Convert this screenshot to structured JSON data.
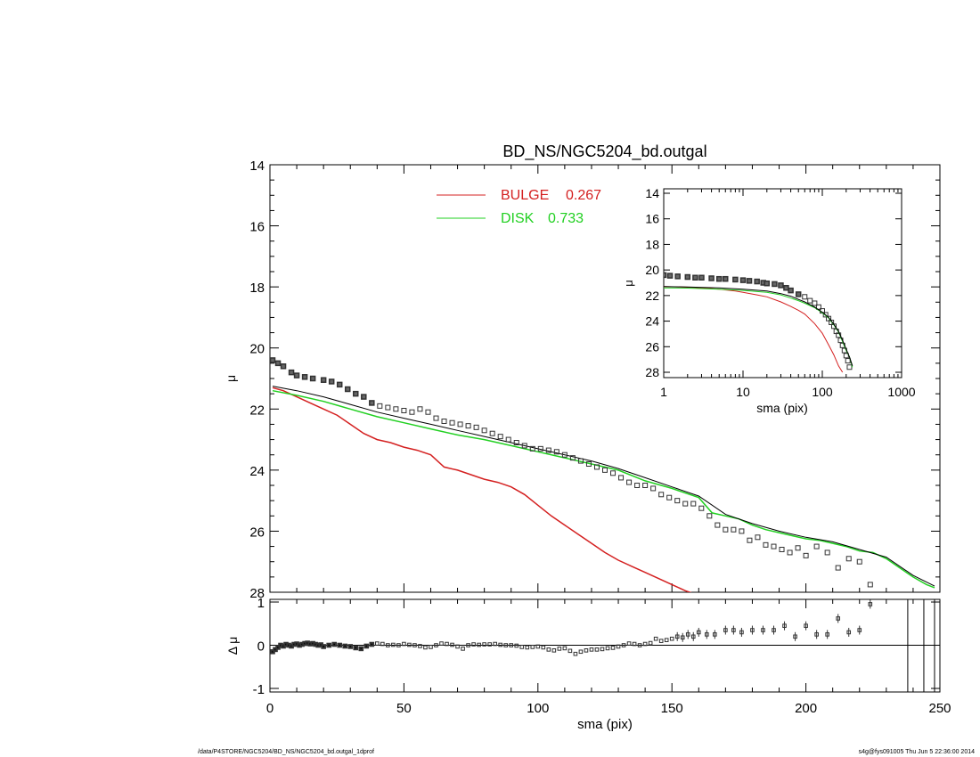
{
  "colors": {
    "bulge": "#d42020",
    "disk": "#22d022",
    "data": "#333333",
    "axis": "#000000"
  },
  "footer": {
    "left": "/data/P4STORE/NGC5204/BD_NS/NGC5204_bd.outgal_1dprof",
    "right": "s4g@fys091005  Thu Jun  5 22:36:00 2014"
  },
  "chart_data": [
    {
      "id": "main",
      "type": "line",
      "title": "BD_NS/NGC5204_bd.outgal",
      "xlabel": "",
      "ylabel": "μ",
      "xlim": [
        0,
        250
      ],
      "ylim": [
        28,
        14
      ],
      "y_ticks": [
        "14",
        "16",
        "18",
        "20",
        "22",
        "24",
        "26",
        "28"
      ],
      "legend": [
        {
          "label": "BULGE",
          "value": "0.267",
          "color": "#d42020"
        },
        {
          "label": "DISK",
          "value": "0.733",
          "color": "#22d022"
        }
      ],
      "series": [
        {
          "name": "BULGE",
          "kind": "line",
          "color": "#d42020",
          "x": [
            1,
            5,
            10,
            15,
            20,
            25,
            30,
            35,
            40,
            45,
            50,
            55,
            60,
            65,
            70,
            75,
            80,
            85,
            90,
            95,
            100,
            105,
            110,
            115,
            120,
            125,
            130,
            135,
            140,
            145,
            150,
            155,
            160
          ],
          "y": [
            21.3,
            21.4,
            21.6,
            21.8,
            22.0,
            22.2,
            22.5,
            22.8,
            23.0,
            23.1,
            23.25,
            23.35,
            23.5,
            23.9,
            24.0,
            24.15,
            24.3,
            24.4,
            24.55,
            24.8,
            25.15,
            25.5,
            25.8,
            26.1,
            26.4,
            26.7,
            26.95,
            27.15,
            27.35,
            27.55,
            27.75,
            27.95,
            28.1
          ]
        },
        {
          "name": "DISK",
          "kind": "line",
          "color": "#22d022",
          "x": [
            1,
            10,
            20,
            30,
            40,
            50,
            60,
            70,
            80,
            90,
            100,
            110,
            120,
            130,
            140,
            150,
            160,
            165,
            170,
            175,
            180,
            185,
            190,
            195,
            200,
            205,
            210,
            215,
            220,
            225,
            230,
            235,
            240,
            245,
            248
          ],
          "y": [
            21.4,
            21.55,
            21.75,
            22.0,
            22.25,
            22.45,
            22.65,
            22.85,
            23.0,
            23.2,
            23.4,
            23.6,
            23.8,
            24.0,
            24.35,
            24.6,
            24.9,
            25.4,
            25.5,
            25.6,
            25.8,
            25.95,
            26.05,
            26.15,
            26.25,
            26.3,
            26.4,
            26.5,
            26.65,
            26.7,
            26.9,
            27.2,
            27.5,
            27.75,
            27.85
          ]
        },
        {
          "name": "total",
          "kind": "line",
          "color": "#000000",
          "x": [
            1,
            10,
            20,
            30,
            40,
            50,
            60,
            70,
            80,
            90,
            100,
            110,
            120,
            130,
            140,
            150,
            160,
            170,
            180,
            190,
            200,
            210,
            220,
            230,
            240,
            248
          ],
          "y": [
            21.25,
            21.4,
            21.6,
            21.85,
            22.1,
            22.3,
            22.5,
            22.7,
            22.9,
            23.1,
            23.3,
            23.5,
            23.7,
            23.95,
            24.25,
            24.55,
            24.85,
            25.45,
            25.75,
            26.0,
            26.2,
            26.35,
            26.6,
            26.85,
            27.45,
            27.8
          ]
        },
        {
          "name": "data",
          "kind": "points",
          "color": "#333333",
          "x": [
            1,
            3,
            5,
            8,
            10,
            13,
            16,
            20,
            23,
            26,
            29,
            32,
            35,
            38,
            41,
            44,
            47,
            50,
            53,
            56,
            59,
            62,
            65,
            68,
            71,
            74,
            77,
            80,
            83,
            86,
            89,
            92,
            95,
            98,
            101,
            104,
            107,
            110,
            113,
            116,
            119,
            122,
            125,
            128,
            131,
            134,
            137,
            140,
            143,
            146,
            149,
            152,
            155,
            158,
            161,
            164,
            167,
            170,
            173,
            176,
            179,
            182,
            185,
            188,
            191,
            194,
            197,
            200,
            204,
            208,
            212,
            216,
            220,
            224
          ],
          "y": [
            20.4,
            20.5,
            20.6,
            20.8,
            20.9,
            20.95,
            21.0,
            21.05,
            21.1,
            21.2,
            21.35,
            21.5,
            21.6,
            21.8,
            21.9,
            21.95,
            22.0,
            22.05,
            22.1,
            22.0,
            22.1,
            22.3,
            22.4,
            22.45,
            22.5,
            22.55,
            22.6,
            22.7,
            22.8,
            22.9,
            23.0,
            23.1,
            23.2,
            23.3,
            23.3,
            23.35,
            23.4,
            23.5,
            23.6,
            23.7,
            23.8,
            23.9,
            24.0,
            24.1,
            24.25,
            24.4,
            24.5,
            24.5,
            24.6,
            24.8,
            24.9,
            25.0,
            25.1,
            25.1,
            25.25,
            25.5,
            25.8,
            25.95,
            25.95,
            26.0,
            26.3,
            26.2,
            26.45,
            26.5,
            26.6,
            26.7,
            26.55,
            26.8,
            26.5,
            26.7,
            27.2,
            26.9,
            27.0,
            27.75
          ]
        }
      ]
    },
    {
      "id": "residual",
      "type": "scatter",
      "xlabel": "sma (pix)",
      "ylabel": "Δ μ",
      "xlim": [
        0,
        250
      ],
      "ylim": [
        -1,
        1
      ],
      "x_ticks": [
        "0",
        "50",
        "100",
        "150",
        "200",
        "250"
      ],
      "y_ticks": [
        "1",
        "0",
        "-1"
      ],
      "zero_line": 0,
      "vertical_lines": [
        238,
        244,
        248
      ],
      "series": [
        {
          "name": "residual",
          "x": [
            1,
            2,
            3,
            4,
            5,
            6,
            7,
            8,
            9,
            10,
            11,
            12,
            13,
            14,
            15,
            16,
            17,
            18,
            19,
            20,
            22,
            24,
            26,
            28,
            30,
            32,
            34,
            36,
            38,
            40,
            42,
            44,
            46,
            48,
            50,
            52,
            54,
            56,
            58,
            60,
            62,
            64,
            66,
            68,
            70,
            72,
            74,
            76,
            78,
            80,
            82,
            84,
            86,
            88,
            90,
            92,
            94,
            96,
            98,
            100,
            102,
            104,
            106,
            108,
            110,
            112,
            114,
            116,
            118,
            120,
            122,
            124,
            126,
            128,
            130,
            132,
            134,
            136,
            138,
            140,
            142,
            144,
            146,
            148,
            150,
            152,
            154,
            156,
            158,
            160,
            163,
            166,
            170,
            173,
            176,
            180,
            184,
            188,
            192,
            196,
            200,
            204,
            208,
            212,
            216,
            220,
            224
          ],
          "y": [
            -0.15,
            -0.1,
            -0.05,
            0.0,
            -0.02,
            0.02,
            0.0,
            -0.02,
            0.02,
            0.03,
            0.0,
            0.02,
            0.04,
            0.05,
            0.03,
            0.04,
            0.02,
            0.0,
            0.01,
            -0.03,
            0.0,
            0.02,
            0.0,
            -0.02,
            -0.03,
            -0.06,
            -0.08,
            -0.02,
            0.02,
            0.04,
            0.03,
            0.0,
            0.01,
            0.0,
            0.03,
            0.01,
            0.0,
            -0.02,
            -0.05,
            -0.04,
            0.0,
            0.04,
            0.03,
            0.01,
            -0.03,
            -0.08,
            0.0,
            0.02,
            0.01,
            0.02,
            0.02,
            0.03,
            0.01,
            0.0,
            0.0,
            -0.01,
            -0.04,
            -0.05,
            -0.04,
            -0.03,
            -0.05,
            -0.1,
            -0.12,
            -0.08,
            -0.07,
            -0.13,
            -0.2,
            -0.15,
            -0.12,
            -0.1,
            -0.1,
            -0.09,
            -0.07,
            -0.06,
            -0.03,
            0.0,
            0.04,
            0.03,
            0.0,
            0.03,
            0.05,
            0.15,
            0.1,
            0.12,
            0.15,
            0.2,
            0.18,
            0.25,
            0.2,
            0.3,
            0.25,
            0.25,
            0.35,
            0.35,
            0.3,
            0.35,
            0.35,
            0.35,
            0.45,
            0.2,
            0.45,
            0.25,
            0.25,
            0.62,
            0.3,
            0.35,
            0.95
          ]
        }
      ]
    },
    {
      "id": "inset",
      "type": "line",
      "xlabel": "sma (pix)",
      "ylabel": "μ",
      "xscale": "log",
      "xlim": [
        1,
        1000
      ],
      "ylim": [
        28,
        14
      ],
      "x_ticks": [
        "1",
        "10",
        "100",
        "1000"
      ],
      "y_ticks": [
        "14",
        "16",
        "18",
        "20",
        "22",
        "24",
        "26",
        "28"
      ],
      "series": [
        {
          "name": "data",
          "kind": "points",
          "color": "#333333",
          "x": [
            1,
            1.2,
            1.5,
            2,
            2.5,
            3,
            4,
            5,
            6,
            8,
            10,
            12,
            15,
            18,
            20,
            25,
            30,
            35,
            40,
            50,
            60,
            70,
            80,
            90,
            100,
            110,
            120,
            130,
            140,
            150,
            160,
            170,
            180,
            190,
            200,
            210,
            220
          ],
          "y": [
            20.4,
            20.45,
            20.5,
            20.55,
            20.6,
            20.6,
            20.65,
            20.7,
            20.7,
            20.75,
            20.8,
            20.85,
            20.9,
            21.0,
            21.05,
            21.1,
            21.2,
            21.4,
            21.6,
            21.9,
            22.1,
            22.4,
            22.6,
            22.9,
            23.2,
            23.5,
            23.8,
            24.1,
            24.4,
            24.8,
            25.1,
            25.5,
            25.9,
            26.3,
            26.7,
            27.1,
            27.6
          ]
        },
        {
          "name": "BULGE",
          "kind": "line",
          "color": "#d42020",
          "x": [
            1,
            2,
            3,
            5,
            8,
            10,
            15,
            20,
            30,
            40,
            50,
            60,
            80,
            100,
            120,
            140,
            160,
            180
          ],
          "y": [
            21.3,
            21.35,
            21.4,
            21.5,
            21.65,
            21.75,
            21.95,
            22.1,
            22.5,
            22.85,
            23.15,
            23.45,
            24.2,
            24.95,
            25.85,
            26.65,
            27.5,
            28.0
          ]
        },
        {
          "name": "DISK",
          "kind": "line",
          "color": "#22d022",
          "x": [
            1,
            2,
            5,
            10,
            20,
            30,
            40,
            50,
            60,
            80,
            100,
            120,
            140,
            160,
            180,
            200,
            220,
            240
          ],
          "y": [
            21.4,
            21.42,
            21.5,
            21.6,
            21.75,
            21.95,
            22.2,
            22.4,
            22.6,
            22.95,
            23.35,
            23.75,
            24.3,
            24.85,
            25.6,
            26.3,
            26.8,
            27.6
          ]
        },
        {
          "name": "total",
          "kind": "line",
          "color": "#000000",
          "x": [
            1,
            2,
            5,
            10,
            20,
            30,
            40,
            50,
            60,
            80,
            100,
            120,
            140,
            160,
            180,
            200,
            220,
            240
          ],
          "y": [
            21.3,
            21.33,
            21.4,
            21.5,
            21.65,
            21.85,
            22.05,
            22.3,
            22.5,
            22.9,
            23.3,
            23.7,
            24.25,
            24.8,
            25.5,
            26.2,
            26.8,
            27.5
          ]
        }
      ]
    }
  ]
}
